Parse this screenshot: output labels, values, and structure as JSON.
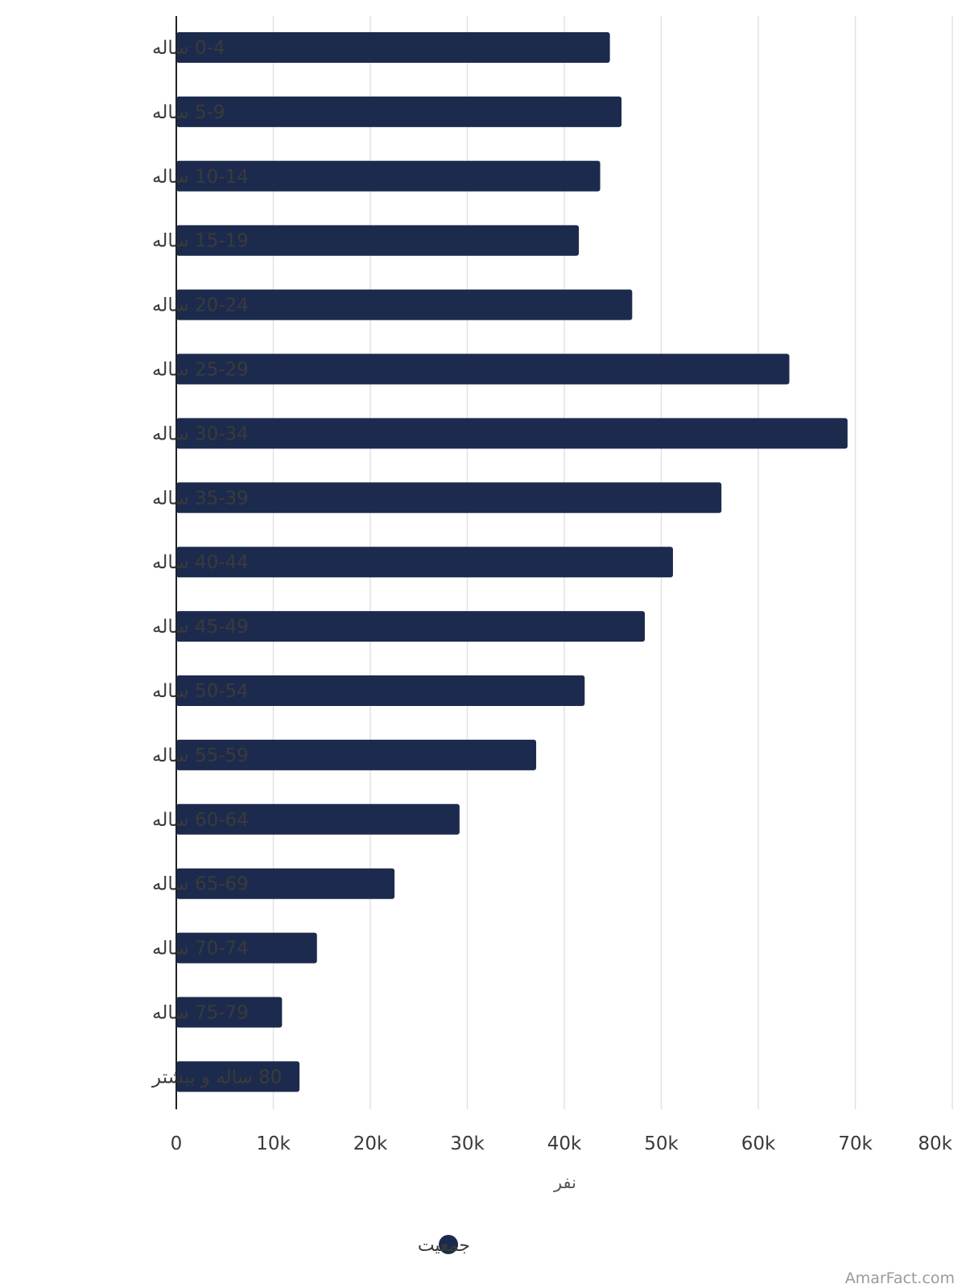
{
  "chart_data": {
    "type": "bar",
    "orientation": "horizontal",
    "categories": [
      "0-4 ساله",
      "5-9 ساله",
      "10-14 ساله",
      "15-19 ساله",
      "20-24 ساله",
      "25-29 ساله",
      "30-34 ساله",
      "35-39 ساله",
      "40-44 ساله",
      "45-49 ساله",
      "50-54 ساله",
      "55-59 ساله",
      "60-64 ساله",
      "65-69 ساله",
      "70-74 ساله",
      "75-79 ساله",
      "80 ساله و بیشتر"
    ],
    "series": [
      {
        "name": "جمعیت",
        "color": "#1c2b4d",
        "values": [
          44700,
          45900,
          43700,
          41500,
          47000,
          63200,
          69200,
          56200,
          51200,
          48300,
          42100,
          37100,
          29200,
          22500,
          14500,
          10900,
          12700
        ]
      }
    ],
    "xlabel": "نفر",
    "ylabel": "",
    "xlim": [
      0,
      80000
    ],
    "xticks": [
      {
        "value": 0,
        "label": "0"
      },
      {
        "value": 10000,
        "label": "10k"
      },
      {
        "value": 20000,
        "label": "20k"
      },
      {
        "value": 30000,
        "label": "30k"
      },
      {
        "value": 40000,
        "label": "40k"
      },
      {
        "value": 50000,
        "label": "50k"
      },
      {
        "value": 60000,
        "label": "60k"
      },
      {
        "value": 70000,
        "label": "70k"
      },
      {
        "value": 80000,
        "label": "80k"
      }
    ],
    "grid": true,
    "legend_position": "bottom-center"
  },
  "watermark": "AmarFact.com"
}
